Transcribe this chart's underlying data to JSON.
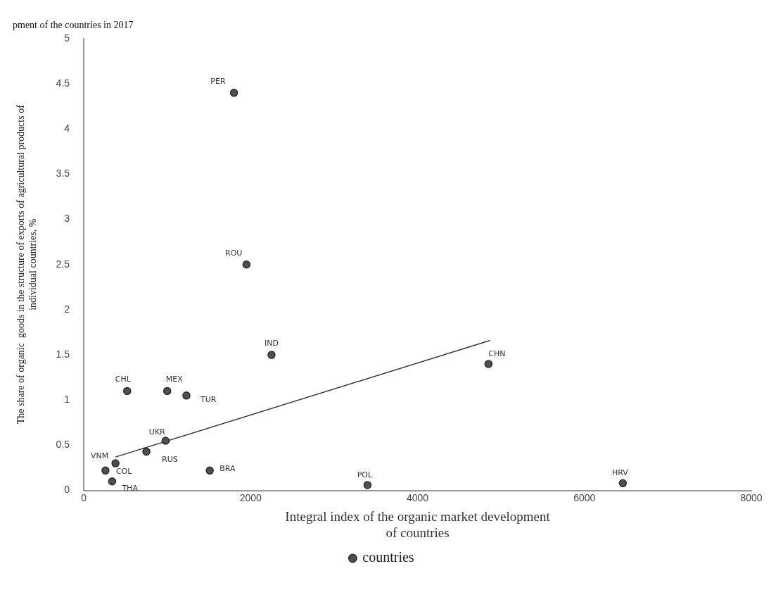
{
  "chart_data": {
    "type": "scatter",
    "title": "pment of the countries in 2017",
    "xlabel": "Integral index of the organic market development\nof countries",
    "ylabel": "The share of organic  goods in the structure of exports of agricultural products of\nindividual countries, %",
    "series": [
      {
        "name": "countries",
        "type": "scatter",
        "color": "#505050",
        "marker": "circle",
        "x": [
          1800,
          1950,
          2250,
          4850,
          520,
          1000,
          1230,
          980,
          750,
          380,
          260,
          340,
          1510,
          3400,
          6460
        ],
        "values": [
          4.4,
          2.5,
          1.5,
          1.4,
          1.1,
          1.1,
          1.05,
          0.55,
          0.43,
          0.3,
          0.22,
          0.1,
          0.22,
          0.06,
          0.08
        ],
        "value_labels": [
          "PER",
          "ROU",
          "IND",
          "CHN",
          "CHL",
          "MEX",
          "TUR",
          "UKR",
          "RUS",
          "VNM",
          "COL",
          "THA",
          "BRA",
          "POL",
          "HRV"
        ]
      },
      {
        "type": "line",
        "color": "#333333",
        "marker": "none",
        "x": [
          380,
          4870
        ],
        "values": [
          0.37,
          1.66
        ]
      }
    ],
    "xlim": [
      0,
      8000
    ],
    "xticks": [
      0,
      2000,
      4000,
      6000,
      8000
    ],
    "ylim": [
      0,
      5
    ],
    "yticks": [
      0,
      0.5,
      1,
      1.5,
      2,
      2.5,
      3,
      3.5,
      4,
      4.5,
      5
    ],
    "grid": false,
    "legend": "bottom"
  }
}
